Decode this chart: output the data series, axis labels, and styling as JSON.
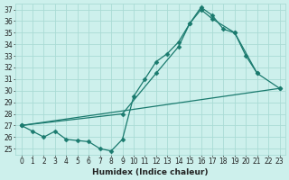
{
  "background_color": "#cdf0ec",
  "grid_color": "#aadbd5",
  "line_color": "#1a7a6e",
  "xlim": [
    -0.5,
    23.5
  ],
  "ylim": [
    24.5,
    37.5
  ],
  "yticks": [
    25,
    26,
    27,
    28,
    29,
    30,
    31,
    32,
    33,
    34,
    35,
    36,
    37
  ],
  "xticks": [
    0,
    1,
    2,
    3,
    4,
    5,
    6,
    7,
    8,
    9,
    10,
    11,
    12,
    13,
    14,
    15,
    16,
    17,
    18,
    19,
    20,
    21,
    22,
    23
  ],
  "xlabel": "Humidex (Indice chaleur)",
  "tick_fontsize": 5.5,
  "xlabel_fontsize": 6.5,
  "line1_x": [
    0,
    1,
    2,
    3,
    4,
    5,
    6,
    7,
    8,
    9,
    10,
    11,
    12,
    13,
    14,
    15,
    16,
    17,
    18,
    19,
    20,
    21
  ],
  "line1_y": [
    27.0,
    26.5,
    26.0,
    26.5,
    25.8,
    25.7,
    25.6,
    25.0,
    24.8,
    25.8,
    29.5,
    31.0,
    32.5,
    33.2,
    34.2,
    35.8,
    37.2,
    36.5,
    35.3,
    35.0,
    33.0,
    31.5
  ],
  "line2_x": [
    0,
    23
  ],
  "line2_y": [
    27.0,
    30.2
  ],
  "line3_x": [
    0,
    9,
    12,
    14,
    15,
    16,
    17,
    19,
    21,
    23
  ],
  "line3_y": [
    27.0,
    28.0,
    31.5,
    33.8,
    35.8,
    37.0,
    36.2,
    35.0,
    31.5,
    30.2
  ]
}
